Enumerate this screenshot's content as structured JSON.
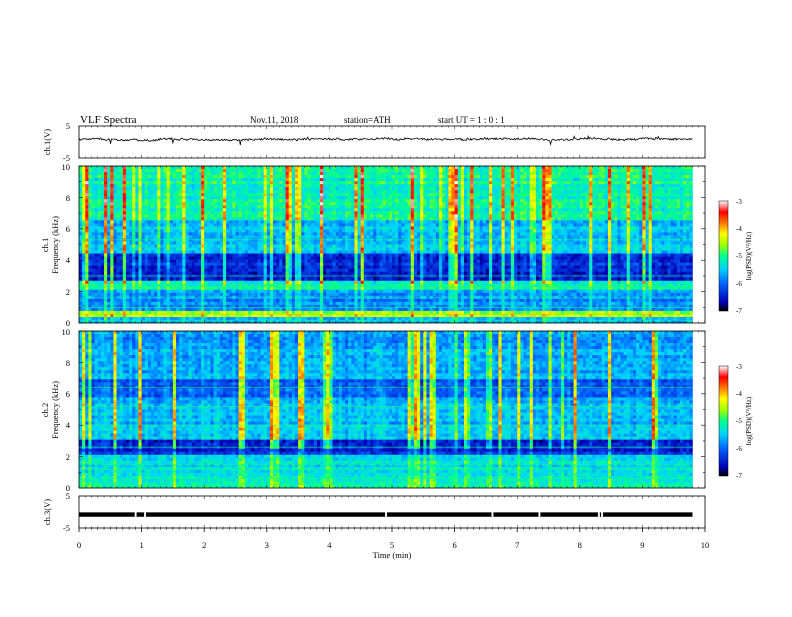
{
  "header": {
    "title": "VLF  Spectra",
    "date": "Nov.11, 2018",
    "station": "station=ATH",
    "start": "start  UT  =    1  : 0   : 1"
  },
  "chart_data": [
    {
      "type": "line",
      "panel": "ch1-waveform",
      "ylabel": "ch.1(V)",
      "ylim": [
        -5,
        5
      ],
      "yticks": [
        "5",
        "-5"
      ],
      "xlim": [
        0,
        10
      ],
      "baseline_v": 0.8
    },
    {
      "type": "heatmap",
      "panel": "ch1-spectrogram",
      "ylabel": "ch.1\nFrequency (kHz)",
      "ylabel_line1": "ch.1",
      "ylabel_line2": "Frequency  (kHz)",
      "ylim": [
        0,
        10
      ],
      "yticks": [
        "0",
        "2",
        "4",
        "6",
        "8",
        "10"
      ],
      "xlim": [
        0,
        9.8
      ],
      "colorbar": {
        "label": "log(PSD)(V²/Hz)",
        "range": [
          -7,
          -3
        ],
        "ticks": [
          "-3",
          "-4",
          "-5",
          "-6",
          "-7"
        ]
      }
    },
    {
      "type": "heatmap",
      "panel": "ch2-spectrogram",
      "ylabel_line1": "ch.2",
      "ylabel_line2": "Frequency  (kHz)",
      "ylim": [
        0,
        10
      ],
      "yticks": [
        "0",
        "2",
        "4",
        "6",
        "8",
        "10"
      ],
      "xlim": [
        0,
        9.8
      ],
      "colorbar": {
        "label": "log(PSD)(V²/Hz)",
        "range": [
          -7,
          -3
        ],
        "ticks": [
          "-3",
          "-4",
          "-5",
          "-6",
          "-7"
        ]
      }
    },
    {
      "type": "line",
      "panel": "ch3-waveform",
      "ylabel": "ch.3(V)",
      "ylim": [
        -5,
        5
      ],
      "yticks": [
        "5",
        "-5"
      ],
      "xlim": [
        0,
        10
      ],
      "baseline_v": -0.8
    }
  ],
  "xaxis": {
    "label": "Time  (min)",
    "ticks": [
      "0",
      "1",
      "2",
      "3",
      "4",
      "5",
      "6",
      "7",
      "8",
      "9",
      "10"
    ]
  },
  "colors": {
    "background": "#ffffff",
    "axis": "#000000",
    "colormap": [
      "#000000",
      "#0000b4",
      "#0064ff",
      "#00d2ff",
      "#00ff8c",
      "#a0ff00",
      "#ffff00",
      "#ff7800",
      "#ff0000",
      "#ffffff"
    ]
  }
}
